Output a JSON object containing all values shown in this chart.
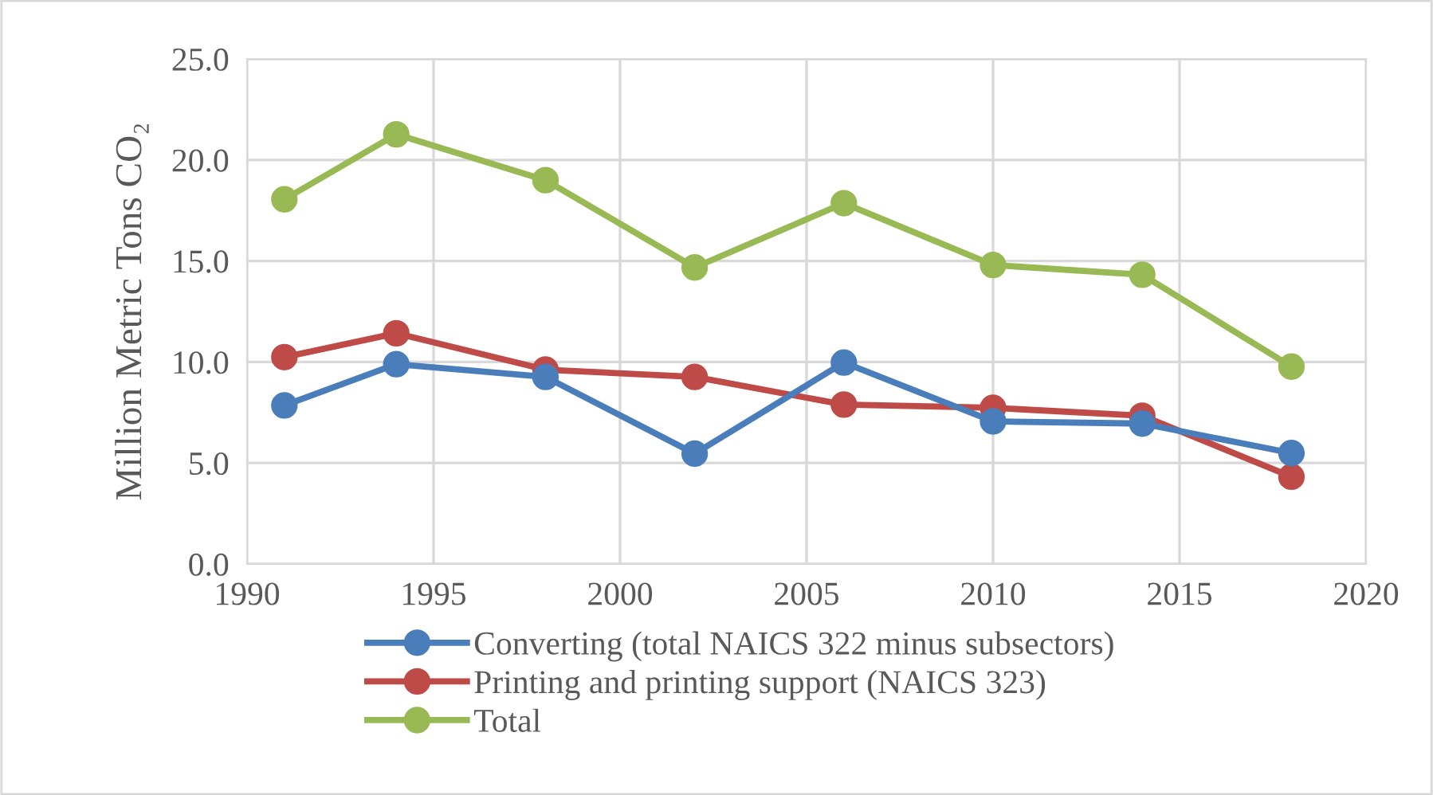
{
  "chart_data": {
    "type": "line",
    "ylabel": "Million Metric Tons CO₂",
    "x": [
      1991,
      1994,
      1998,
      2002,
      2006,
      2010,
      2014,
      2018
    ],
    "series": [
      {
        "name": "Converting (total NAICS 322 minus subsectors)",
        "color": "#4a7ebb",
        "values": [
          7.85,
          9.89,
          9.26,
          5.46,
          9.97,
          7.06,
          6.95,
          5.49
        ]
      },
      {
        "name": "Printing and printing support (NAICS 323)",
        "color": "#be4b48",
        "values": [
          10.24,
          11.42,
          9.62,
          9.26,
          7.89,
          7.73,
          7.34,
          4.32
        ]
      },
      {
        "name": "Total",
        "color": "#98b954",
        "values": [
          18.05,
          21.27,
          19.0,
          14.68,
          17.86,
          14.8,
          14.32,
          9.77
        ]
      }
    ],
    "xlim": [
      1990,
      2020
    ],
    "xticks": [
      1990,
      1995,
      2000,
      2005,
      2010,
      2015,
      2020
    ],
    "ylim": [
      0,
      25
    ],
    "yticks": [
      {
        "value": 0,
        "label": "0.0"
      },
      {
        "value": 5,
        "label": "5.0"
      },
      {
        "value": 10,
        "label": "10.0"
      },
      {
        "value": 15,
        "label": "15.0"
      },
      {
        "value": 20,
        "label": "20.0"
      },
      {
        "value": 25,
        "label": "25.0"
      }
    ],
    "grid": true,
    "legend": "bottom",
    "marker": "circle",
    "line_style": "solid"
  }
}
